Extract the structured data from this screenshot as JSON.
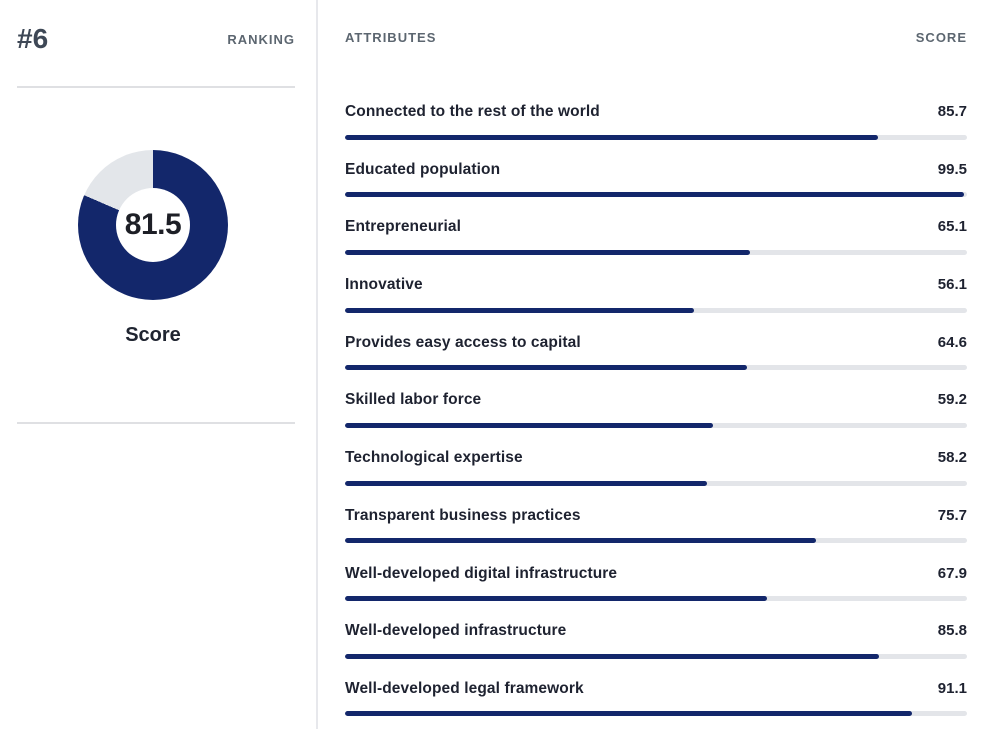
{
  "colors": {
    "navy": "#13276b",
    "ring_gray": "#e3e6ea",
    "track_gray": "#e3e5e9",
    "dark_text": "#1e2230",
    "header_slate": "#5c6670"
  },
  "ranking_panel": {
    "rank": "#6",
    "rank_caption": "RANKING",
    "score_value": "81.5",
    "score_percent": 81.5,
    "score_caption": "Score"
  },
  "attributes_panel": {
    "header_attributes": "ATTRIBUTES",
    "header_score": "SCORE",
    "rows": [
      {
        "label": "Connected to the rest of the world",
        "score": "85.7",
        "percent": 85.7
      },
      {
        "label": "Educated population",
        "score": "99.5",
        "percent": 99.5
      },
      {
        "label": "Entrepreneurial",
        "score": "65.1",
        "percent": 65.1
      },
      {
        "label": "Innovative",
        "score": "56.1",
        "percent": 56.1
      },
      {
        "label": "Provides easy access to capital",
        "score": "64.6",
        "percent": 64.6
      },
      {
        "label": "Skilled labor force",
        "score": "59.2",
        "percent": 59.2
      },
      {
        "label": "Technological expertise",
        "score": "58.2",
        "percent": 58.2
      },
      {
        "label": "Transparent business practices",
        "score": "75.7",
        "percent": 75.7
      },
      {
        "label": "Well-developed digital infrastructure",
        "score": "67.9",
        "percent": 67.9
      },
      {
        "label": "Well-developed infrastructure",
        "score": "85.8",
        "percent": 85.8
      },
      {
        "label": "Well-developed legal framework",
        "score": "91.1",
        "percent": 91.1
      }
    ]
  },
  "chart_data": [
    {
      "type": "pie",
      "subtype": "donut",
      "title": "Score",
      "labels": [
        "Score",
        "Remainder"
      ],
      "values": [
        81.5,
        18.5
      ],
      "center_label": "81.5",
      "colors": [
        "#13276b",
        "#e3e6ea"
      ],
      "start_angle": "top",
      "direction": "clockwise"
    },
    {
      "type": "bar",
      "orientation": "horizontal",
      "title": "ATTRIBUTES",
      "value_header": "SCORE",
      "categories": [
        "Connected to the rest of the world",
        "Educated population",
        "Entrepreneurial",
        "Innovative",
        "Provides easy access to capital",
        "Skilled labor force",
        "Technological expertise",
        "Transparent business practices",
        "Well-developed digital infrastructure",
        "Well-developed infrastructure",
        "Well-developed legal framework"
      ],
      "values": [
        85.7,
        99.5,
        65.1,
        56.1,
        64.6,
        59.2,
        58.2,
        75.7,
        67.9,
        85.8,
        91.1
      ],
      "xlim": [
        0,
        100
      ],
      "bar_color": "#13276b",
      "track_color": "#e3e5e9",
      "grid": false,
      "legend": false
    }
  ]
}
